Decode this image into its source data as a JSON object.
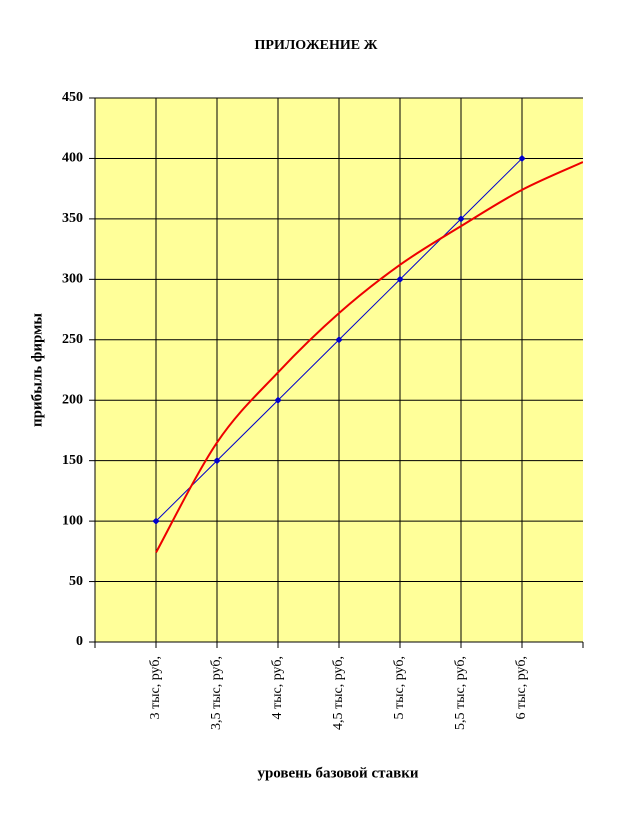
{
  "chart_data": {
    "type": "line",
    "title": "ПРИЛОЖЕНИЕ Ж",
    "x_label": "уровень базовой ставки",
    "y_label": "прибыль фирмы",
    "categories": [
      null,
      "3 тыс, руб,",
      "3,5 тыс, руб,",
      "4 тыс, руб,",
      "4,5 тыс, руб,",
      "5 тыс, руб,",
      "5,5 тыс, руб,",
      "6 тыс, руб,",
      null
    ],
    "series": [
      {
        "color": "#0000cc",
        "values": [
          null,
          100,
          150,
          200,
          250,
          300,
          350,
          400,
          null
        ]
      },
      {
        "color": "#ee0000",
        "values": [
          null,
          74,
          165,
          223,
          272,
          312,
          344,
          374,
          397
        ]
      }
    ],
    "ylim": [
      0,
      450
    ],
    "yticks": [
      0,
      50,
      100,
      150,
      200,
      250,
      300,
      350,
      400,
      450
    ],
    "grid": true,
    "background": "#ffff99"
  }
}
